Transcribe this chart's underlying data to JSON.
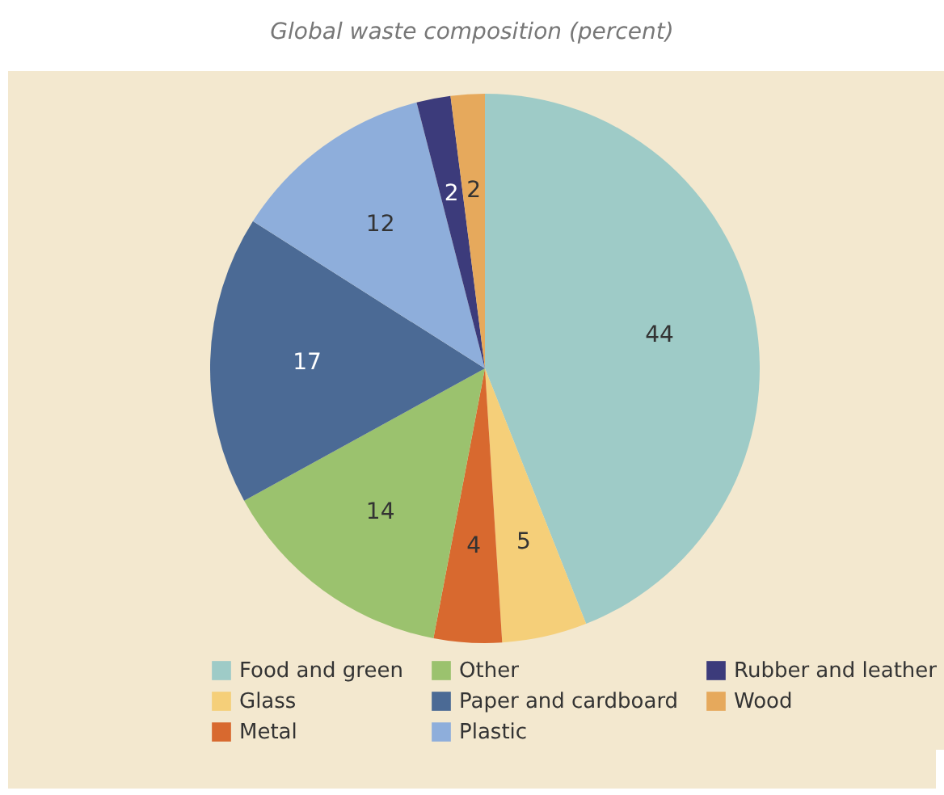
{
  "chart_data": {
    "type": "pie",
    "title": "Global waste composition (percent)",
    "categories": [
      "Food and green",
      "Glass",
      "Metal",
      "Other",
      "Paper and cardboard",
      "Plastic",
      "Rubber and leather",
      "Wood"
    ],
    "values": [
      44,
      5,
      4,
      14,
      17,
      12,
      2,
      2
    ],
    "colors": [
      "#9ecbc7",
      "#f5cf79",
      "#d8692f",
      "#9bc26e",
      "#4b6a95",
      "#8eaedb",
      "#3c3b7b",
      "#e6a95c"
    ],
    "data_labels": true,
    "legend": "bottom"
  }
}
